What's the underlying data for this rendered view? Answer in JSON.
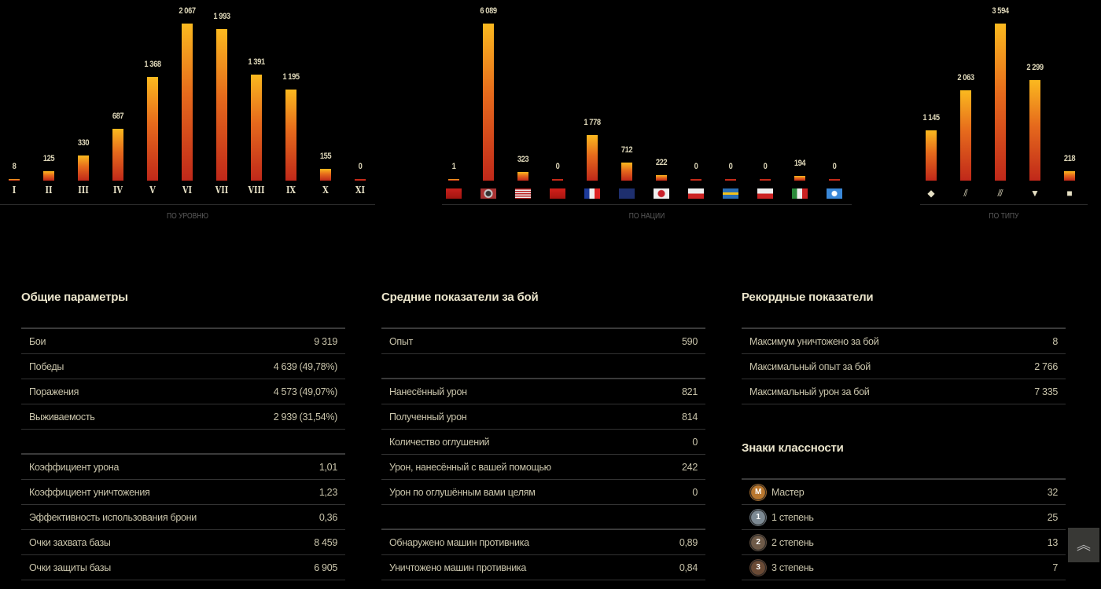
{
  "colors": {
    "bar_bottom": "#c0281a",
    "bar_top": "#fbb91f",
    "text": "#c9c4ab",
    "heading": "#ebe5cc"
  },
  "chart_data": [
    {
      "type": "bar",
      "title": "ПО УРОВНЮ",
      "categories": [
        "I",
        "II",
        "III",
        "IV",
        "V",
        "VI",
        "VII",
        "VIII",
        "IX",
        "X",
        "XI"
      ],
      "values": [
        8,
        125,
        330,
        687,
        1368,
        2067,
        1993,
        1391,
        1195,
        155,
        0
      ],
      "labels": [
        "8",
        "125",
        "330",
        "687",
        "1 368",
        "2 067",
        "1 993",
        "1 391",
        "1 195",
        "155",
        "0"
      ]
    },
    {
      "type": "bar",
      "title": "ПО НАЦИИ",
      "categories": [
        "ussr",
        "germany",
        "usa",
        "china",
        "france",
        "uk",
        "japan",
        "czech",
        "sweden",
        "poland",
        "italy",
        "intunion"
      ],
      "values": [
        1,
        6089,
        323,
        0,
        1778,
        712,
        222,
        0,
        0,
        0,
        194,
        0
      ],
      "labels": [
        "1",
        "6 089",
        "323",
        "0",
        "1 778",
        "712",
        "222",
        "0",
        "0",
        "0",
        "194",
        "0"
      ]
    },
    {
      "type": "bar",
      "title": "ПО ТИПУ",
      "categories": [
        "light-tank",
        "medium-tank",
        "heavy-tank",
        "at-spg",
        "spg"
      ],
      "values": [
        1145,
        2063,
        3594,
        2299,
        218
      ],
      "labels": [
        "1 145",
        "2 063",
        "3 594",
        "2 299",
        "218"
      ]
    }
  ],
  "sections": [
    {
      "title": "Общие параметры",
      "rows": [
        {
          "label": "Бои",
          "value": "9 319"
        },
        {
          "label": "Победы",
          "value": "4 639 (49,78%)"
        },
        {
          "label": "Поражения",
          "value": "4 573 (49,07%)"
        },
        {
          "label": "Выживаемость",
          "value": "2 939 (31,54%)"
        },
        {
          "blank": true
        },
        {
          "label": "Коэффициент урона",
          "value": "1,01"
        },
        {
          "label": "Коэффициент уничтожения",
          "value": "1,23"
        },
        {
          "label": "Эффективность использования брони",
          "value": "0,36"
        },
        {
          "label": "Очки захвата базы",
          "value": "8 459"
        },
        {
          "label": "Очки защиты базы",
          "value": "6 905"
        }
      ]
    },
    {
      "title": "Средние показатели за бой",
      "rows": [
        {
          "label": "Опыт",
          "value": "590"
        },
        {
          "blank": true
        },
        {
          "label": "Нанесённый урон",
          "value": "821"
        },
        {
          "label": "Полученный урон",
          "value": "814"
        },
        {
          "label": "Количество оглушений",
          "value": "0"
        },
        {
          "label": "Урон, нанесённый с вашей помощью",
          "value": "242"
        },
        {
          "label": "Урон по оглушённым вами целям",
          "value": "0"
        },
        {
          "blank": true
        },
        {
          "label": "Обнаружено машин противника",
          "value": "0,89"
        },
        {
          "label": "Уничтожено машин противника",
          "value": "0,84"
        }
      ]
    },
    {
      "title": "Рекордные показатели",
      "rows": [
        {
          "label": "Максимум уничтожено за бой",
          "value": "8"
        },
        {
          "label": "Максимальный опыт за бой",
          "value": "2 766"
        },
        {
          "label": "Максимальный урон за бой",
          "value": "7 335"
        }
      ]
    },
    {
      "title": "Знаки классности",
      "rows": [
        {
          "label": "Мастер",
          "value": "32",
          "badge": "M",
          "badge_color": "#b9772e"
        },
        {
          "label": "1 степень",
          "value": "25",
          "badge": "1",
          "badge_color": "#7d8a94"
        },
        {
          "label": "2 степень",
          "value": "13",
          "badge": "2",
          "badge_color": "#6e5a48"
        },
        {
          "label": "3 степень",
          "value": "7",
          "badge": "3",
          "badge_color": "#6a4a35"
        }
      ]
    }
  ],
  "scroll_top_icon": "double-chevron-up-icon"
}
